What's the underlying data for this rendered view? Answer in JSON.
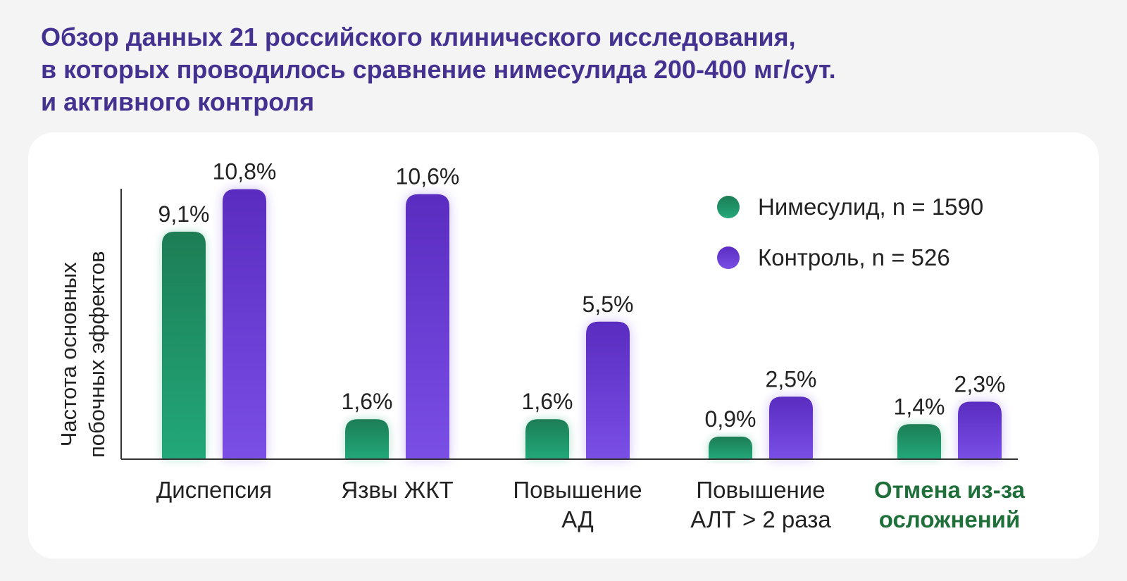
{
  "title_lines": [
    "Обзор данных 21 российского клинического исследования,",
    "в которых проводилось сравнение нимесулида 200-400 мг/сут.",
    "и активного контроля"
  ],
  "colors": {
    "title": "#45318f",
    "nimesulide_top": "#1d7d55",
    "nimesulide_bottom": "#22a87a",
    "control_top": "#5a2cc0",
    "control_bottom": "#7a4fe6",
    "highlight_category": "#1f6f3a",
    "text": "#222222"
  },
  "chart_data": {
    "type": "bar",
    "ylabel": [
      "Частота основных",
      "побочных эффектов"
    ],
    "categories": [
      {
        "lines": [
          "Диспепсия"
        ],
        "highlight": false
      },
      {
        "lines": [
          "Язвы ЖКТ"
        ],
        "highlight": false
      },
      {
        "lines": [
          "Повышение",
          "АД"
        ],
        "highlight": false
      },
      {
        "lines": [
          "Повышение",
          "АЛТ > 2 раза"
        ],
        "highlight": false
      },
      {
        "lines": [
          "Отмена из-за",
          "осложнений"
        ],
        "highlight": true
      }
    ],
    "series": [
      {
        "name": "Нимесулид, n = 1590",
        "values": [
          9.1,
          1.6,
          1.6,
          0.9,
          1.4
        ],
        "labels": [
          "9,1%",
          "1,6%",
          "1,6%",
          "0,9%",
          "1,4%"
        ]
      },
      {
        "name": "Контроль, n = 526",
        "values": [
          10.8,
          10.6,
          5.5,
          2.5,
          2.3
        ],
        "labels": [
          "10,8%",
          "10,6%",
          "5,5%",
          "2,5%",
          "2,3%"
        ]
      }
    ],
    "ylim": [
      0,
      11
    ],
    "grid": false,
    "legend_position": "top-right"
  }
}
